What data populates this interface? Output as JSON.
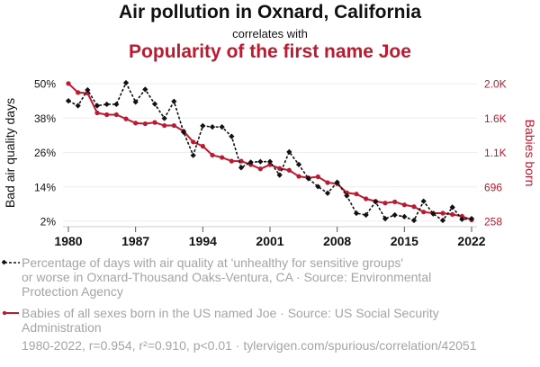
{
  "header": {
    "title": "Air pollution in Oxnard, California",
    "connector": "correlates with",
    "subtitle": "Popularity of the first name Joe"
  },
  "colors": {
    "series1": "#111111",
    "series2": "#bb1a30",
    "grid": "#eeeeee",
    "legend_text": "#a4a4a4"
  },
  "legend": {
    "series1_text_lines": [
      "Percentage of days with air quality at 'unhealthy for sensitive groups'",
      "or worse in Oxnard-Thousand Oaks-Ventura, CA · Source: Environmental",
      "Protection Agency"
    ],
    "series2_text_lines": [
      "Babies of all sexes born in the US named Joe · Source: US Social Security",
      "Administration"
    ]
  },
  "footer": "1980-2022, r=0.954, r²=0.910, p<0.01 · tylervigen.com/spurious/correlation/42051",
  "chart_data": {
    "type": "line",
    "title": "Air pollution in Oxnard, California correlates with Popularity of the first name Joe",
    "xlabel": "",
    "ylabel": "Bad air quality days",
    "y2label": "Babies born",
    "x": [
      1980,
      1981,
      1982,
      1983,
      1984,
      1985,
      1986,
      1987,
      1988,
      1989,
      1990,
      1991,
      1992,
      1993,
      1994,
      1995,
      1996,
      1997,
      1998,
      1999,
      2000,
      2001,
      2002,
      2003,
      2004,
      2005,
      2006,
      2007,
      2008,
      2009,
      2010,
      2011,
      2012,
      2013,
      2014,
      2015,
      2016,
      2017,
      2018,
      2019,
      2020,
      2021,
      2022
    ],
    "xticks": [
      "1980",
      "1987",
      "1994",
      "2001",
      "2008",
      "2015",
      "2022"
    ],
    "xlim": [
      1980,
      2022
    ],
    "ylim": [
      2,
      50
    ],
    "yticks": [
      "50%",
      "38%",
      "26%",
      "14%",
      "2%"
    ],
    "ytick_values": [
      50,
      38,
      26,
      14,
      2
    ],
    "y2lim": [
      258,
      2010
    ],
    "y2ticks": [
      "2.0K",
      "1.6K",
      "1.1K",
      "696",
      "258"
    ],
    "y2tick_values": [
      2010,
      1572,
      1134,
      696,
      258
    ],
    "grid": true,
    "legend_position": "bottom",
    "series": [
      {
        "name": "Percentage of days with air quality at 'unhealthy for sensitive groups' or worse in Oxnard-Thousand Oaks-Ventura, CA",
        "axis": "left",
        "style": "dashed-diamond",
        "values": [
          44.0,
          42.3,
          47.8,
          42.3,
          42.8,
          42.8,
          50.3,
          43.6,
          48.0,
          42.9,
          37.9,
          43.8,
          33.1,
          25.0,
          35.3,
          34.9,
          34.9,
          31.6,
          20.7,
          22.6,
          22.8,
          22.8,
          18.1,
          26.2,
          21.8,
          16.9,
          14.1,
          11.8,
          15.6,
          10.9,
          4.8,
          4.2,
          8.8,
          2.9,
          4.2,
          3.6,
          2.3,
          9.0,
          4.6,
          2.3,
          6.9,
          2.7,
          2.9
        ]
      },
      {
        "name": "Babies of all sexes born in the US named Joe",
        "axis": "right",
        "style": "solid-circle",
        "values": [
          2012,
          1897,
          1889,
          1638,
          1615,
          1615,
          1562,
          1508,
          1500,
          1516,
          1477,
          1477,
          1405,
          1268,
          1214,
          1100,
          1070,
          1024,
          1024,
          979,
          925,
          979,
          931,
          908,
          830,
          811,
          825,
          750,
          736,
          620,
          605,
          544,
          513,
          490,
          505,
          467,
          444,
          376,
          361,
          361,
          345,
          322,
          276
        ]
      }
    ]
  }
}
